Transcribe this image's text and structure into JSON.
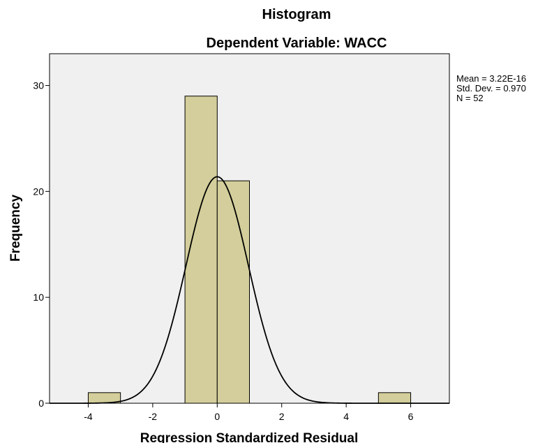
{
  "chart_data": {
    "type": "histogram",
    "title": "Histogram",
    "subtitle": "Dependent Variable: WACC",
    "xlabel": "Regression Standardized Residual",
    "ylabel": "Frequency",
    "xlim": [
      -5.2,
      7.2
    ],
    "ylim": [
      0,
      33
    ],
    "x_ticks": [
      -4,
      -2,
      0,
      2,
      4,
      6
    ],
    "y_ticks": [
      0,
      10,
      20,
      30
    ],
    "bins": [
      {
        "start": -4,
        "end": -3,
        "count": 1
      },
      {
        "start": -1,
        "end": 0,
        "count": 29
      },
      {
        "start": 0,
        "end": 1,
        "count": 21
      },
      {
        "start": 5,
        "end": 6,
        "count": 1
      }
    ],
    "normal_curve": {
      "mean": 3.22e-16,
      "std_dev": 0.97,
      "n": 52,
      "bin_width": 1
    },
    "stats": {
      "mean_label": "Mean = 3.22E-16",
      "std_label": "Std. Dev. = 0.970",
      "n_label": "N = 52"
    },
    "colors": {
      "plot_background": "#f0f0f0",
      "bar_fill": "#d3ce9b",
      "bar_stroke": "#000000",
      "curve": "#000000"
    },
    "grid": false,
    "legend": "none"
  }
}
